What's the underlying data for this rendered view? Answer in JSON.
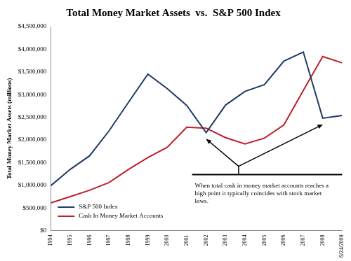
{
  "chart_data": {
    "type": "line",
    "title": "Total Money Market Assets  vs.  S&P 500 Index",
    "y_label": "Total Money Market Assets (millions)",
    "categories": [
      "1994",
      "1995",
      "1996",
      "1997",
      "1998",
      "1999",
      "2000",
      "2001",
      "2002",
      "2003",
      "2004",
      "2005",
      "2006",
      "2007",
      "2008",
      "6/24/2009"
    ],
    "series": [
      {
        "name": "S&P 500 Index",
        "color": "#1f3a63",
        "marker": "none",
        "values": [
          990000,
          1350000,
          1650000,
          2200000,
          2830000,
          3450000,
          3130000,
          2760000,
          2160000,
          2770000,
          3070000,
          3220000,
          3740000,
          3940000,
          2480000,
          2540000
        ]
      },
      {
        "name": "Cash In Money Market Accounts",
        "color": "#be1e2d",
        "marker": "none",
        "values": [
          610000,
          750000,
          890000,
          1060000,
          1350000,
          1610000,
          1840000,
          2280000,
          2260000,
          2050000,
          1910000,
          2040000,
          2330000,
          3090000,
          3840000,
          3700000
        ]
      }
    ],
    "ylim": [
      0,
      4500000
    ],
    "yticks": [
      {
        "value": 0,
        "label": "$0"
      },
      {
        "value": 500000,
        "label": "$500,000"
      },
      {
        "value": 1000000,
        "label": "$1,000,000"
      },
      {
        "value": 1500000,
        "label": "$1,500,000"
      },
      {
        "value": 2000000,
        "label": "$2,000,000"
      },
      {
        "value": 2500000,
        "label": "$2,500,000"
      },
      {
        "value": 3000000,
        "label": "$3,000,000"
      },
      {
        "value": 3500000,
        "label": "$3,500,000"
      },
      {
        "value": 4000000,
        "label": "$4,000,000"
      },
      {
        "value": 4500000,
        "label": "$4,500,000"
      }
    ],
    "grid": false,
    "legend": "lower left",
    "annotation": "When total cash in money market accounts reaches a high point it typically coincides with stock market lows."
  }
}
